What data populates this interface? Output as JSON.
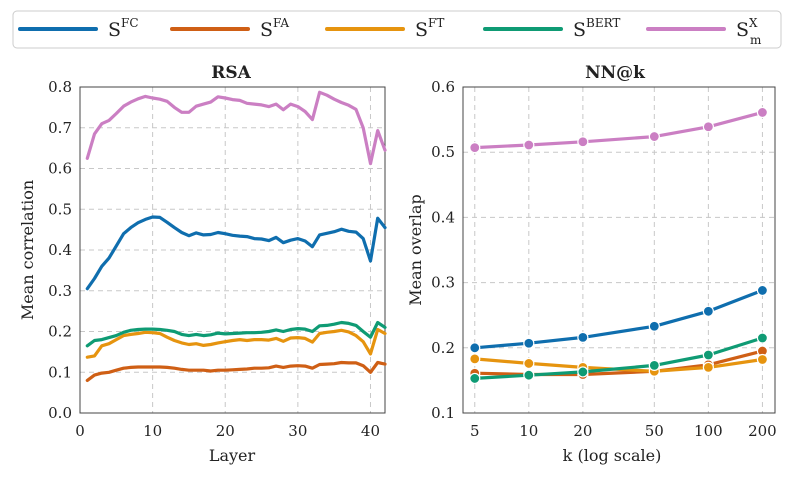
{
  "legend": [
    {
      "base": "S",
      "sup": "FC",
      "sub": "",
      "color": "#0f6eae"
    },
    {
      "base": "S",
      "sup": "FA",
      "sub": "",
      "color": "#cf5f15"
    },
    {
      "base": "S",
      "sup": "FT",
      "sub": "",
      "color": "#e6940f"
    },
    {
      "base": "S",
      "sup": "BERT",
      "sub": "",
      "color": "#0f9b74"
    },
    {
      "base": "S",
      "sup": "X",
      "sub": "m",
      "color": "#cb7fc3"
    }
  ],
  "chart_data": [
    {
      "type": "line",
      "title": "RSA",
      "xlabel": "Layer",
      "ylabel": "Mean correlation",
      "xlim": [
        0,
        42
      ],
      "ylim": [
        0.0,
        0.8
      ],
      "xticks": [
        0,
        10,
        20,
        30,
        40
      ],
      "yticks": [
        0.0,
        0.1,
        0.2,
        0.3,
        0.4,
        0.5,
        0.6,
        0.7,
        0.8
      ],
      "grid": true,
      "x": [
        1,
        2,
        3,
        4,
        5,
        6,
        7,
        8,
        9,
        10,
        11,
        12,
        13,
        14,
        15,
        16,
        17,
        18,
        19,
        20,
        21,
        22,
        23,
        24,
        25,
        26,
        27,
        28,
        29,
        30,
        31,
        32,
        33,
        34,
        35,
        36,
        37,
        38,
        39,
        40,
        41,
        42
      ],
      "series": [
        {
          "name": "SFC",
          "color": "#0f6eae",
          "values": [
            0.305,
            0.33,
            0.36,
            0.38,
            0.41,
            0.44,
            0.455,
            0.467,
            0.475,
            0.481,
            0.48,
            0.468,
            0.455,
            0.443,
            0.435,
            0.442,
            0.437,
            0.438,
            0.443,
            0.44,
            0.436,
            0.434,
            0.433,
            0.428,
            0.427,
            0.423,
            0.431,
            0.418,
            0.424,
            0.428,
            0.422,
            0.408,
            0.437,
            0.441,
            0.445,
            0.451,
            0.446,
            0.444,
            0.428,
            0.373,
            0.478,
            0.455
          ]
        },
        {
          "name": "SFA",
          "color": "#cf5f15",
          "values": [
            0.08,
            0.093,
            0.098,
            0.1,
            0.105,
            0.11,
            0.112,
            0.113,
            0.113,
            0.113,
            0.113,
            0.112,
            0.11,
            0.107,
            0.105,
            0.105,
            0.105,
            0.103,
            0.105,
            0.105,
            0.106,
            0.107,
            0.108,
            0.11,
            0.11,
            0.111,
            0.115,
            0.112,
            0.115,
            0.116,
            0.115,
            0.11,
            0.119,
            0.12,
            0.121,
            0.124,
            0.123,
            0.123,
            0.116,
            0.1,
            0.124,
            0.12
          ]
        },
        {
          "name": "SFT",
          "color": "#e6940f",
          "values": [
            0.137,
            0.14,
            0.165,
            0.17,
            0.18,
            0.19,
            0.193,
            0.195,
            0.198,
            0.197,
            0.195,
            0.186,
            0.178,
            0.172,
            0.168,
            0.17,
            0.166,
            0.168,
            0.172,
            0.175,
            0.178,
            0.18,
            0.178,
            0.18,
            0.18,
            0.179,
            0.183,
            0.176,
            0.184,
            0.185,
            0.183,
            0.174,
            0.195,
            0.198,
            0.2,
            0.203,
            0.199,
            0.19,
            0.175,
            0.145,
            0.205,
            0.195
          ]
        },
        {
          "name": "SBERT",
          "color": "#0f9b74",
          "values": [
            0.165,
            0.178,
            0.18,
            0.185,
            0.19,
            0.198,
            0.203,
            0.205,
            0.206,
            0.206,
            0.205,
            0.203,
            0.2,
            0.193,
            0.19,
            0.193,
            0.19,
            0.192,
            0.196,
            0.194,
            0.195,
            0.196,
            0.197,
            0.197,
            0.198,
            0.2,
            0.204,
            0.2,
            0.205,
            0.207,
            0.206,
            0.2,
            0.214,
            0.215,
            0.218,
            0.222,
            0.22,
            0.215,
            0.2,
            0.186,
            0.222,
            0.21
          ]
        },
        {
          "name": "SmX",
          "color": "#cb7fc3",
          "values": [
            0.625,
            0.685,
            0.71,
            0.718,
            0.735,
            0.753,
            0.763,
            0.771,
            0.777,
            0.773,
            0.77,
            0.765,
            0.75,
            0.738,
            0.738,
            0.753,
            0.758,
            0.763,
            0.776,
            0.773,
            0.769,
            0.767,
            0.76,
            0.758,
            0.756,
            0.752,
            0.758,
            0.744,
            0.758,
            0.752,
            0.74,
            0.72,
            0.787,
            0.78,
            0.77,
            0.762,
            0.755,
            0.745,
            0.7,
            0.612,
            0.693,
            0.645
          ]
        }
      ]
    },
    {
      "type": "line",
      "title": "NN@k",
      "xlabel": "k (log scale)",
      "ylabel": "Mean overlap",
      "xscale": "log",
      "xlim": [
        4.3,
        235
      ],
      "ylim": [
        0.1,
        0.6
      ],
      "xticks": [
        5,
        10,
        20,
        50,
        100,
        200
      ],
      "yticks": [
        0.1,
        0.2,
        0.3,
        0.4,
        0.5,
        0.6
      ],
      "grid": true,
      "markers": true,
      "x": [
        5,
        10,
        20,
        50,
        100,
        200
      ],
      "series": [
        {
          "name": "SFC",
          "color": "#0f6eae",
          "values": [
            0.2,
            0.207,
            0.216,
            0.233,
            0.256,
            0.288
          ]
        },
        {
          "name": "SFA",
          "color": "#cf5f15",
          "values": [
            0.161,
            0.159,
            0.159,
            0.164,
            0.174,
            0.195
          ]
        },
        {
          "name": "SFT",
          "color": "#e6940f",
          "values": [
            0.183,
            0.176,
            0.17,
            0.164,
            0.17,
            0.182
          ]
        },
        {
          "name": "SBERT",
          "color": "#0f9b74",
          "values": [
            0.153,
            0.158,
            0.163,
            0.173,
            0.189,
            0.215
          ]
        },
        {
          "name": "SmX",
          "color": "#cb7fc3",
          "values": [
            0.507,
            0.511,
            0.516,
            0.524,
            0.539,
            0.561
          ]
        }
      ]
    }
  ]
}
